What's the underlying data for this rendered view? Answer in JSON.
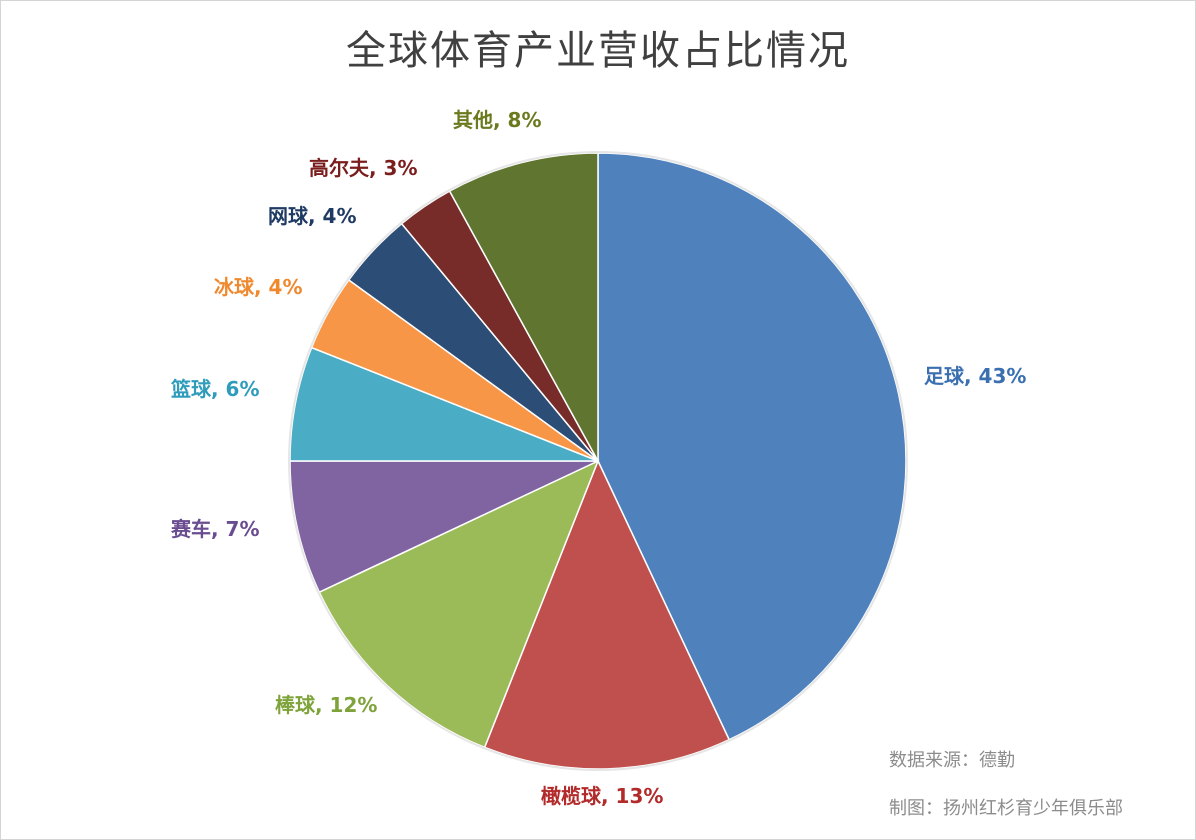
{
  "chart_data": {
    "type": "pie",
    "title": "全球体育产业营收占比情况",
    "start_angle_deg": 0,
    "direction": "clockwise",
    "slices": [
      {
        "label": "足球",
        "value": 43,
        "text": "43%",
        "color": "#4F81BD"
      },
      {
        "label": "橄榄球",
        "value": 13,
        "text": "13%",
        "color": "#C0504D"
      },
      {
        "label": "棒球",
        "value": 12,
        "text": "12%",
        "color": "#9BBB59"
      },
      {
        "label": "赛车",
        "value": 7,
        "text": "7%",
        "color": "#8064A2"
      },
      {
        "label": "篮球",
        "value": 6,
        "text": "6%",
        "color": "#4BACC6"
      },
      {
        "label": "冰球",
        "value": 4,
        "text": "4%",
        "color": "#F79646"
      },
      {
        "label": "网球",
        "value": 4,
        "text": "4%",
        "color": "#2C4D75"
      },
      {
        "label": "高尔夫",
        "value": 3,
        "text": "3%",
        "color": "#772C2A"
      },
      {
        "label": "其他",
        "value": 8,
        "text": "8%",
        "color": "#5F7530"
      }
    ],
    "label_colors": [
      "#3A6FB0",
      "#B22A2A",
      "#7EA33A",
      "#6A4C91",
      "#2F9CBB",
      "#F0892E",
      "#1F3A63",
      "#7A1D1D",
      "#6A7A1C"
    ]
  },
  "notes": {
    "source": "数据来源：德勤",
    "credit": "制图：扬州红杉育少年俱乐部"
  }
}
